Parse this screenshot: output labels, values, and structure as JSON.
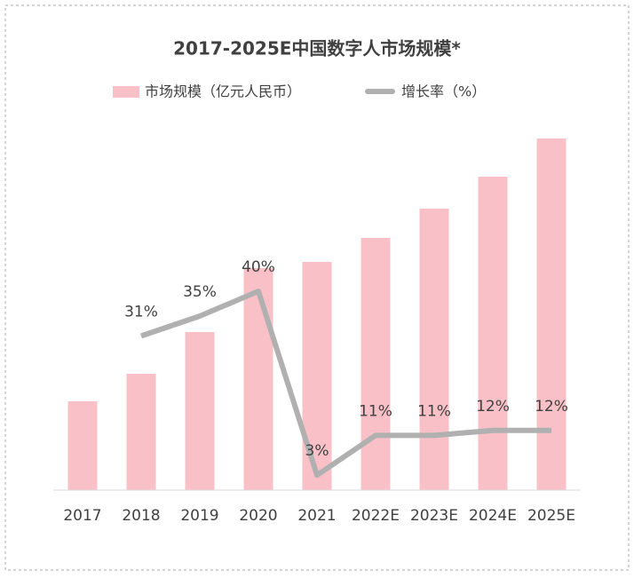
{
  "chart_data": {
    "type": "bar",
    "title": "2017-2025E中国数字人市场规模*",
    "categories": [
      "2017",
      "2018",
      "2019",
      "2020",
      "2021",
      "2022E",
      "2023E",
      "2024E",
      "2025E"
    ],
    "series": [
      {
        "name": "市场规模（亿元人民币）",
        "color": "#f9c1c7",
        "type": "bar",
        "values": [
          100,
          131,
          178,
          250,
          257,
          284,
          317,
          353,
          396
        ]
      },
      {
        "name": "增长率（%）",
        "color": "#b0b0b0",
        "type": "line",
        "axis": "y2",
        "values": [
          null,
          31,
          35,
          40,
          3,
          11,
          11,
          12,
          12
        ],
        "value_labels": [
          null,
          "31%",
          "35%",
          "40%",
          "3%",
          "11%",
          "11%",
          "12%",
          "12%"
        ]
      }
    ],
    "ylim": [
      0,
      420
    ],
    "y2lim": [
      0,
      75
    ],
    "legend": "top"
  }
}
